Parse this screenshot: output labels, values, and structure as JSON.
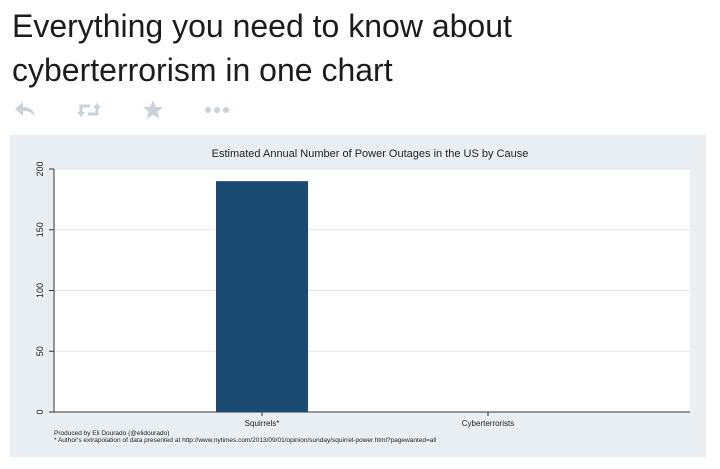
{
  "tweet": {
    "text": "Everything you need to know about cyberterrorism in one chart"
  },
  "actions": [
    {
      "name": "reply",
      "icon": "reply-icon"
    },
    {
      "name": "retweet",
      "icon": "retweet-icon"
    },
    {
      "name": "favorite",
      "icon": "star-icon"
    },
    {
      "name": "more",
      "icon": "more-dots-icon"
    }
  ],
  "colors": {
    "bar": "#1b4a72",
    "plot_bg": "#ffffff",
    "card_bg": "#e8eef2",
    "icon": "#c9d2d8"
  },
  "chart_data": {
    "type": "bar",
    "title": "Estimated Annual Number of Power Outages in the US by Cause",
    "categories": [
      "Squirrels*",
      "Cyberterrorists"
    ],
    "values": [
      190,
      0
    ],
    "xlabel": "",
    "ylabel": "",
    "ylim": [
      0,
      200
    ],
    "yticks": [
      0,
      50,
      100,
      150,
      200
    ],
    "grid": true,
    "legend": "none"
  },
  "notes": {
    "credit": "Produced by Eli Dourado (@elidourado)",
    "footnote": "* Author's extrapolation of data presented at http://www.nytimes.com/2013/09/01/opinion/sunday/squirrel-power.html?pagewanted=all"
  }
}
